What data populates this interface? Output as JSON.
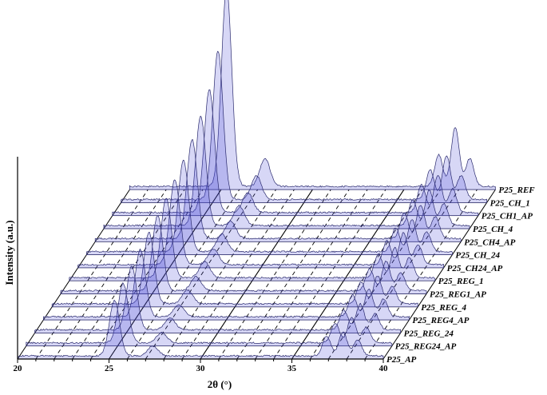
{
  "chart_data": {
    "type": "line",
    "style": "3d-waterfall",
    "xlabel": "2θ (°)",
    "ylabel": "Intensity (a.u.)",
    "xlim": [
      20,
      40
    ],
    "x_ticks": [
      "20",
      "25",
      "30",
      "35",
      "40"
    ],
    "grid": true,
    "fill_color": "#4b4bd6",
    "line_color": "#2a2a6e",
    "series": [
      {
        "name": "P25_AP",
        "peaks": [
          [
            25.3,
            0.28
          ],
          [
            27.4,
            0.05
          ],
          [
            36.9,
            0.1
          ],
          [
            37.8,
            0.12
          ],
          [
            38.6,
            0.08
          ]
        ]
      },
      {
        "name": "P25_REG24_AP",
        "peaks": [
          [
            25.3,
            0.3
          ],
          [
            27.4,
            0.05
          ],
          [
            36.9,
            0.1
          ],
          [
            37.8,
            0.13
          ],
          [
            38.6,
            0.08
          ]
        ]
      },
      {
        "name": "P25_REG_24",
        "peaks": [
          [
            25.3,
            0.32
          ],
          [
            27.4,
            0.06
          ],
          [
            36.9,
            0.1
          ],
          [
            37.8,
            0.13
          ],
          [
            38.6,
            0.08
          ]
        ]
      },
      {
        "name": "P25_REG4_AP",
        "peaks": [
          [
            25.3,
            0.34
          ],
          [
            27.4,
            0.06
          ],
          [
            36.9,
            0.11
          ],
          [
            37.8,
            0.14
          ],
          [
            38.6,
            0.09
          ]
        ]
      },
      {
        "name": "P25_REG_4",
        "peaks": [
          [
            25.3,
            0.36
          ],
          [
            27.4,
            0.07
          ],
          [
            36.9,
            0.11
          ],
          [
            37.8,
            0.14
          ],
          [
            38.6,
            0.09
          ]
        ]
      },
      {
        "name": "P25_REG1_AP",
        "peaks": [
          [
            25.3,
            0.38
          ],
          [
            27.4,
            0.07
          ],
          [
            36.9,
            0.11
          ],
          [
            37.8,
            0.15
          ],
          [
            38.6,
            0.09
          ]
        ]
      },
      {
        "name": "P25_REG_1",
        "peaks": [
          [
            25.3,
            0.4
          ],
          [
            27.4,
            0.08
          ],
          [
            36.9,
            0.12
          ],
          [
            37.8,
            0.15
          ],
          [
            38.6,
            0.1
          ]
        ]
      },
      {
        "name": "P25_CH24_AP",
        "peaks": [
          [
            25.3,
            0.43
          ],
          [
            27.4,
            0.08
          ],
          [
            36.9,
            0.12
          ],
          [
            37.8,
            0.16
          ],
          [
            38.6,
            0.1
          ]
        ]
      },
      {
        "name": "P25_CH_24",
        "peaks": [
          [
            25.3,
            0.46
          ],
          [
            27.4,
            0.09
          ],
          [
            36.9,
            0.12
          ],
          [
            37.8,
            0.16
          ],
          [
            38.6,
            0.1
          ]
        ]
      },
      {
        "name": "P25_CH4_AP",
        "peaks": [
          [
            25.3,
            0.5
          ],
          [
            27.4,
            0.09
          ],
          [
            36.9,
            0.13
          ],
          [
            37.8,
            0.17
          ],
          [
            38.6,
            0.11
          ]
        ]
      },
      {
        "name": "P25_CH_4",
        "peaks": [
          [
            25.3,
            0.55
          ],
          [
            27.4,
            0.1
          ],
          [
            36.9,
            0.13
          ],
          [
            37.8,
            0.18
          ],
          [
            38.6,
            0.11
          ]
        ]
      },
      {
        "name": "P25_CH1_AP",
        "peaks": [
          [
            25.3,
            0.62
          ],
          [
            27.4,
            0.1
          ],
          [
            36.9,
            0.14
          ],
          [
            37.8,
            0.19
          ],
          [
            38.6,
            0.12
          ]
        ]
      },
      {
        "name": "P25_CH_1",
        "peaks": [
          [
            25.3,
            0.75
          ],
          [
            27.4,
            0.12
          ],
          [
            36.9,
            0.15
          ],
          [
            37.8,
            0.22
          ],
          [
            38.6,
            0.12
          ]
        ]
      },
      {
        "name": "P25_REF",
        "peaks": [
          [
            25.3,
            1.0
          ],
          [
            27.4,
            0.14
          ],
          [
            36.9,
            0.16
          ],
          [
            37.8,
            0.3
          ],
          [
            38.6,
            0.14
          ]
        ]
      }
    ]
  }
}
